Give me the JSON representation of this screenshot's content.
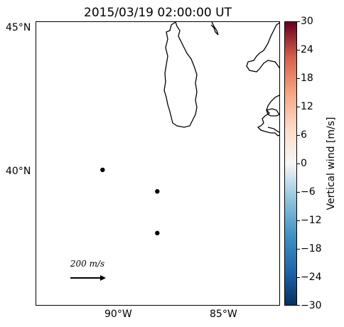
{
  "title": "2015/03/19 02:00:00 UT",
  "map": {
    "lat_labels": [
      {
        "label": "45°N",
        "lat": 45
      },
      {
        "label": "40°N",
        "lat": 40
      }
    ],
    "lon_labels": [
      {
        "label": "90°W",
        "lon": -90
      },
      {
        "label": "85°W",
        "lon": -85
      }
    ],
    "stations": [
      {
        "lat": 40.1,
        "lon": -90.8
      },
      {
        "lat": 39.35,
        "lon": -88.2
      },
      {
        "lat": 37.9,
        "lon": -88.2
      }
    ],
    "reference_vector": {
      "label": "200 m/s",
      "value_mps": 200
    }
  },
  "colorbar": {
    "label": "Vertical wind [m/s]",
    "min": -30,
    "max": 30,
    "ticks": [
      "30",
      "24",
      "18",
      "12",
      "6",
      "0",
      "−6",
      "−12",
      "−18",
      "−24",
      "−30"
    ],
    "colormap": "RdBu_r",
    "colors": [
      "#053061",
      "#2166ac",
      "#4393c3",
      "#92c5de",
      "#f7f7f7",
      "#fddbc7",
      "#f4a582",
      "#d6604d",
      "#67001f"
    ]
  }
}
